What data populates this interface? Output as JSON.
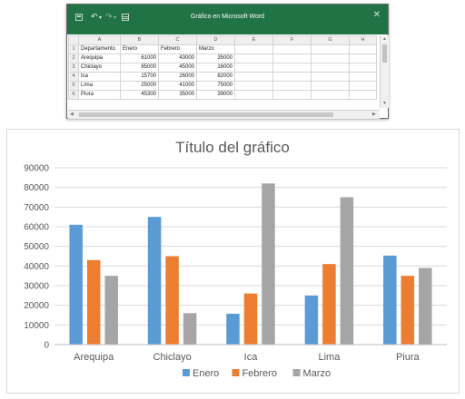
{
  "window": {
    "title": "Gráfico en Microsoft Word",
    "close_glyph": "✕",
    "quick_access_icons": [
      "save-icon",
      "undo-icon",
      "redo-icon",
      "grid-icon"
    ]
  },
  "sheet": {
    "column_letters": [
      "A",
      "B",
      "C",
      "D",
      "E",
      "F",
      "G",
      "H"
    ],
    "row_numbers": [
      "1",
      "2",
      "3",
      "4",
      "5",
      "6"
    ],
    "headers": [
      "Departamento",
      "Enero",
      "Febrero",
      "Marzo"
    ],
    "rows": [
      [
        "Arequipa",
        "61000",
        "43000",
        "35000"
      ],
      [
        "Chiclayo",
        "65000",
        "45000",
        "16000"
      ],
      [
        "Ica",
        "15700",
        "26000",
        "82000"
      ],
      [
        "Lima",
        "25000",
        "41000",
        "75000"
      ],
      [
        "Piura",
        "45300",
        "35000",
        "39000"
      ]
    ]
  },
  "chart_data": {
    "type": "bar",
    "title": "Título del gráfico",
    "categories": [
      "Arequipa",
      "Chiclayo",
      "Ica",
      "Lima",
      "Piura"
    ],
    "series": [
      {
        "name": "Enero",
        "color": "#5b9bd5",
        "values": [
          61000,
          65000,
          15700,
          25000,
          45300
        ]
      },
      {
        "name": "Febrero",
        "color": "#ed7d31",
        "values": [
          43000,
          45000,
          26000,
          41000,
          35000
        ]
      },
      {
        "name": "Marzo",
        "color": "#a5a5a5",
        "values": [
          35000,
          16000,
          82000,
          75000,
          39000
        ]
      }
    ],
    "ylim": [
      0,
      90000
    ],
    "yticks": [
      "0",
      "10000",
      "20000",
      "30000",
      "40000",
      "50000",
      "60000",
      "70000",
      "80000",
      "90000"
    ],
    "xlabel": "",
    "ylabel": "",
    "grid": true,
    "legend_position": "bottom"
  }
}
